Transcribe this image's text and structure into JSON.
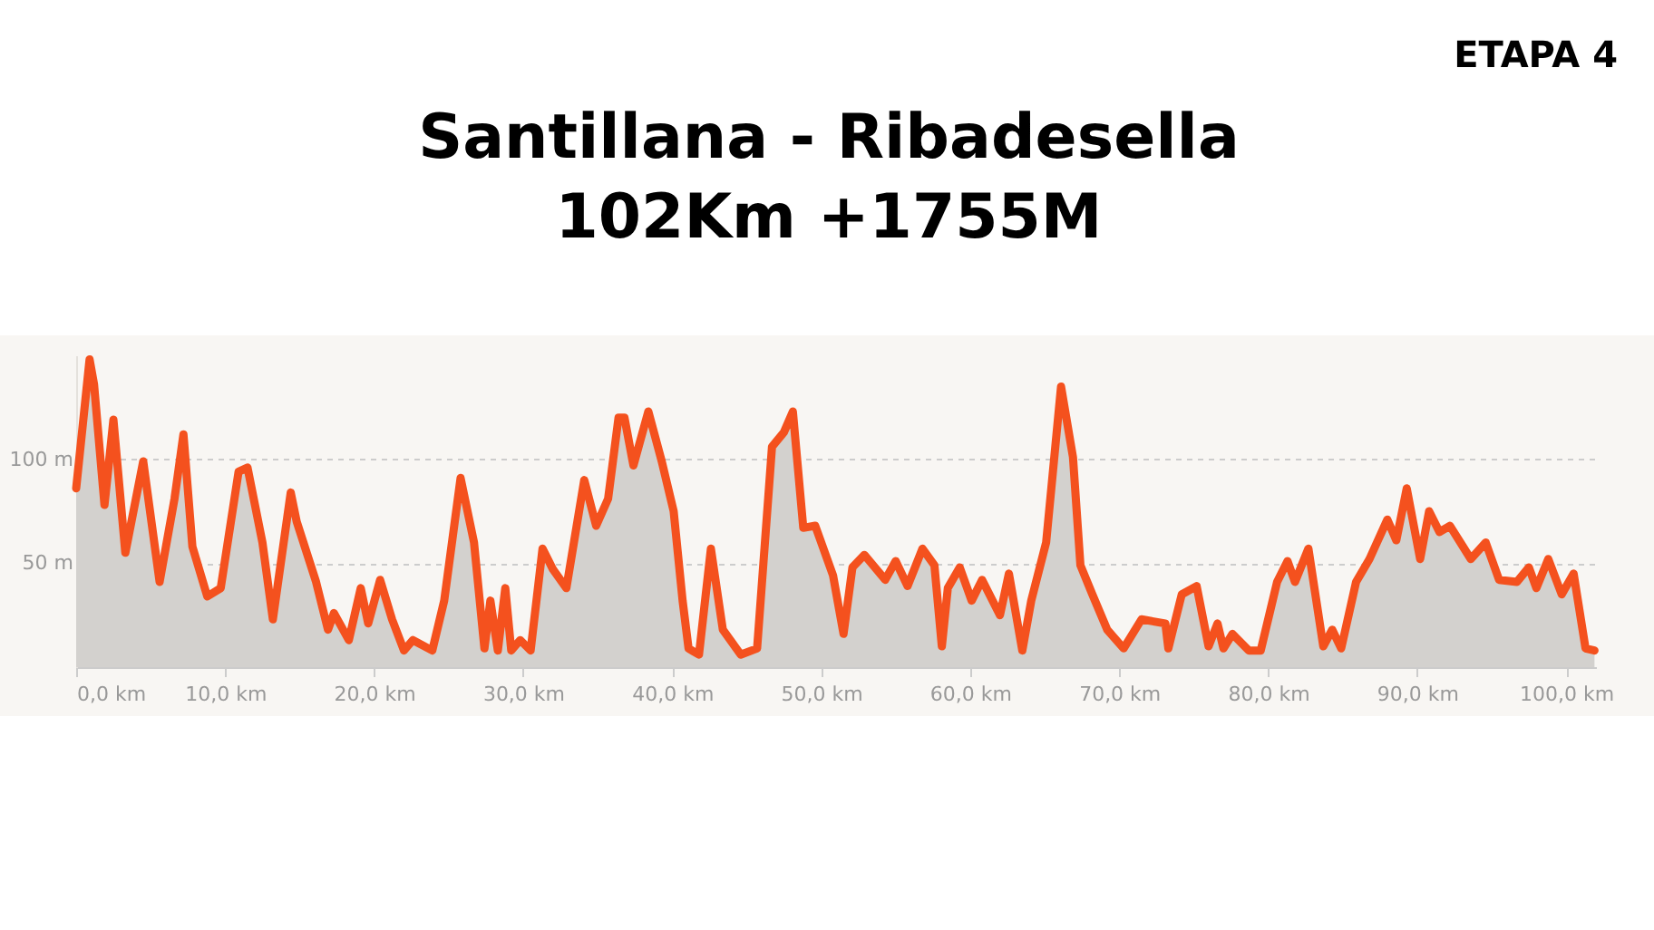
{
  "chart_data": {
    "type": "area",
    "title": "Santillana - Ribadesella",
    "subtitle": "102Km +1755M",
    "annotations": [
      "ETAPA 4"
    ],
    "x": [
      0,
      0.9,
      1.2,
      1.9,
      2.5,
      3.3,
      4.5,
      5.6,
      6.6,
      7.2,
      7.8,
      8.8,
      9.7,
      10.9,
      11.5,
      12.5,
      13.2,
      14.4,
      14.8,
      16.1,
      16.9,
      17.3,
      18.3,
      19.1,
      19.6,
      20.4,
      21.2,
      22.0,
      22.6,
      23.9,
      24.7,
      25.8,
      26.7,
      27.4,
      27.8,
      28.3,
      28.8,
      29.2,
      29.8,
      30.5,
      31.3,
      32.0,
      32.9,
      34.1,
      34.9,
      35.7,
      36.4,
      36.8,
      37.4,
      38.4,
      39.3,
      40.1,
      40.7,
      41.1,
      41.8,
      42.6,
      43.4,
      44.6,
      45.7,
      46.7,
      47.5,
      48.1,
      48.8,
      49.6,
      50.8,
      51.5,
      52.1,
      52.9,
      54.3,
      55.0,
      55.8,
      56.8,
      57.6,
      58.1,
      58.5,
      59.3,
      60.1,
      60.8,
      62.0,
      62.6,
      63.5,
      64.1,
      65.1,
      66.1,
      66.9,
      67.4,
      68.2,
      69.2,
      70.3,
      71.5,
      73.1,
      73.3,
      74.2,
      75.2,
      76.0,
      76.6,
      77.0,
      77.6,
      78.7,
      79.5,
      80.6,
      81.3,
      81.8,
      82.7,
      83.7,
      84.3,
      84.9,
      85.9,
      86.8,
      88.0,
      88.6,
      89.3,
      90.2,
      90.8,
      91.5,
      92.2,
      93.6,
      94.6,
      95.5,
      96.7,
      97.5,
      98.0,
      98.8,
      99.7,
      100.5,
      101.3,
      101.9
    ],
    "series": [
      {
        "color": "#f4511e",
        "values": [
          86,
          148,
          136,
          78,
          119,
          55,
          99,
          41,
          81,
          112,
          58,
          34,
          38,
          94,
          96,
          60,
          23,
          84,
          70,
          41,
          18,
          26,
          13,
          38,
          21,
          42,
          23,
          8,
          13,
          8,
          32,
          91,
          60,
          9,
          32,
          8,
          38,
          8,
          13,
          8,
          57,
          47,
          38,
          90,
          68,
          81,
          120,
          120,
          97,
          123,
          99,
          75,
          32,
          9,
          6,
          57,
          18,
          6,
          9,
          106,
          113,
          123,
          67,
          68,
          44,
          16,
          48,
          54,
          42,
          51,
          39,
          57,
          49,
          10,
          38,
          48,
          32,
          42,
          25,
          45,
          8,
          32,
          60,
          135,
          101,
          49,
          35,
          18,
          9,
          23,
          21,
          9,
          35,
          39,
          10,
          21,
          9,
          16,
          8,
          8,
          41,
          51,
          41,
          57,
          10,
          18,
          9,
          41,
          52,
          71,
          61,
          86,
          52,
          75,
          65,
          68,
          52,
          60,
          42,
          41,
          48,
          38,
          52,
          35,
          45,
          9,
          8
        ]
      }
    ],
    "xlim": [
      0,
      102
    ],
    "ylim": [
      0,
      150
    ],
    "xticks": [
      {
        "value": 0,
        "label": "0,0 km"
      },
      {
        "value": 10,
        "label": "10,0 km"
      },
      {
        "value": 20,
        "label": "20,0 km"
      },
      {
        "value": 30,
        "label": "30,0 km"
      },
      {
        "value": 40,
        "label": "40,0 km"
      },
      {
        "value": 50,
        "label": "50,0 km"
      },
      {
        "value": 60,
        "label": "60,0 km"
      },
      {
        "value": 70,
        "label": "70,0 km"
      },
      {
        "value": 80,
        "label": "80,0 km"
      },
      {
        "value": 90,
        "label": "90,0 km"
      },
      {
        "value": 100,
        "label": "100,0 km"
      }
    ],
    "yticks": [
      {
        "value": 50,
        "label": "50 m"
      },
      {
        "value": 100,
        "label": "100 m"
      }
    ],
    "grid": "y",
    "marker": "none",
    "line_style": "solid"
  }
}
